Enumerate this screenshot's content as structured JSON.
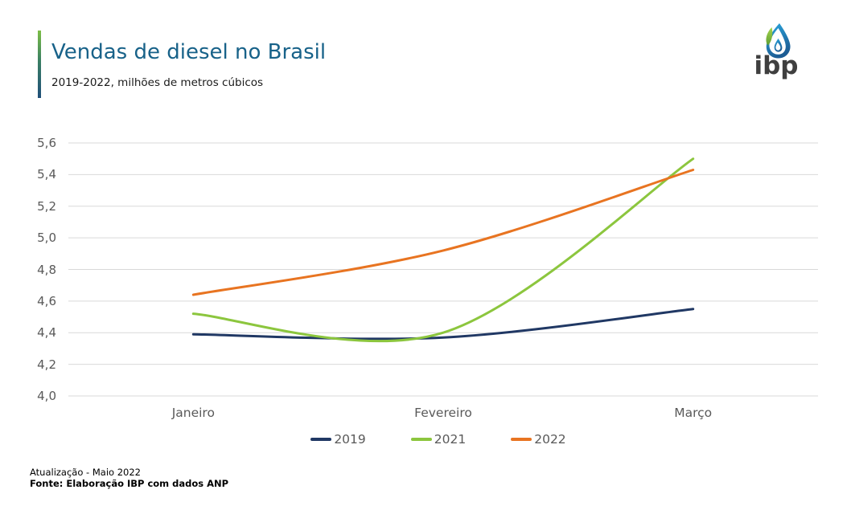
{
  "header": {
    "title": "Vendas de diesel no Brasil",
    "subtitle": "2019-2022, milhões de metros cúbicos"
  },
  "logo": {
    "text": "ibp"
  },
  "footer": {
    "line1": "Atualização - Maio 2022",
    "line2": "Fonte: Elaboração IBP com dados ANP"
  },
  "colors": {
    "title_blue": "#186289",
    "grid": "#d9d9d9",
    "axis_text": "#595959",
    "navy": "#203864",
    "green": "#8cc63e",
    "orange": "#e87421"
  },
  "chart_data": {
    "type": "line",
    "title": "Vendas de diesel no Brasil",
    "subtitle": "2019-2022, milhões de metros cúbicos",
    "categories": [
      "Janeiro",
      "Fevereiro",
      "Março"
    ],
    "series": [
      {
        "name": "2019",
        "color": "#203864",
        "values": [
          4.39,
          4.37,
          4.55
        ]
      },
      {
        "name": "2021",
        "color": "#8cc63e",
        "values": [
          4.52,
          4.4,
          5.5
        ]
      },
      {
        "name": "2022",
        "color": "#e87421",
        "values": [
          4.64,
          4.92,
          5.43
        ]
      }
    ],
    "ylim": [
      4.0,
      5.6
    ],
    "ytick_step": 0.2,
    "ytick_labels": [
      "4,0",
      "4,2",
      "4,4",
      "4,6",
      "4,8",
      "5,0",
      "5,2",
      "5,4",
      "5,6"
    ],
    "grid": "horizontal-only",
    "legend_position": "bottom",
    "smooth": true
  }
}
